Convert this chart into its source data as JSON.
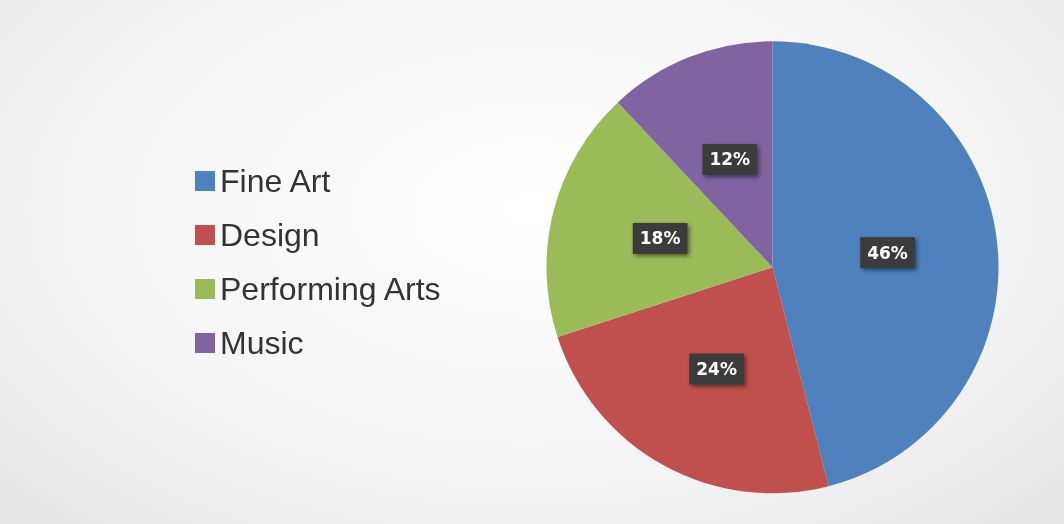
{
  "chart_data": {
    "type": "pie",
    "categories": [
      "Fine Art",
      "Design",
      "Performing Arts",
      "Music"
    ],
    "values": [
      46,
      24,
      18,
      12
    ],
    "colors": [
      "#4f81bd",
      "#c0504d",
      "#9bbb59",
      "#8064a2"
    ],
    "value_labels": [
      "46%",
      "24%",
      "18%",
      "12%"
    ],
    "legend": "left"
  }
}
